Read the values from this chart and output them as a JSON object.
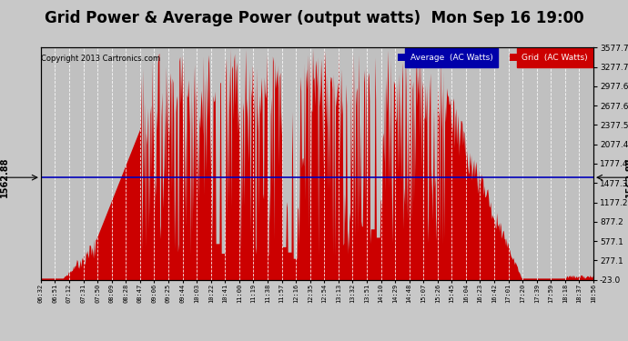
{
  "title": "Grid Power & Average Power (output watts)  Mon Sep 16 19:00",
  "copyright": "Copyright 2013 Cartronics.com",
  "average_value": 1562.88,
  "ymin": -23.0,
  "ymax": 3577.7,
  "yticks_right": [
    3577.7,
    3277.7,
    2977.6,
    2677.6,
    2377.5,
    2077.4,
    1777.4,
    1477.3,
    1177.2,
    877.2,
    577.1,
    277.1,
    -23.0
  ],
  "background_color": "#c8c8c8",
  "plot_bg_color": "#c0c0c0",
  "grid_color": "#ffffff",
  "bar_color": "#cc0000",
  "avg_line_color": "#0000bb",
  "legend_avg_color": "#0000aa",
  "legend_grid_color": "#cc0000",
  "title_fontsize": 12,
  "xtick_labels": [
    "06:32",
    "06:51",
    "07:12",
    "07:31",
    "07:50",
    "08:09",
    "08:28",
    "08:47",
    "09:06",
    "09:25",
    "09:44",
    "10:03",
    "10:22",
    "10:41",
    "11:00",
    "11:19",
    "11:38",
    "11:57",
    "12:16",
    "12:35",
    "12:54",
    "13:13",
    "13:32",
    "13:51",
    "14:10",
    "14:29",
    "14:48",
    "15:07",
    "15:26",
    "15:45",
    "16:04",
    "16:23",
    "16:42",
    "17:01",
    "17:20",
    "17:39",
    "17:59",
    "18:18",
    "18:37",
    "18:56"
  ]
}
